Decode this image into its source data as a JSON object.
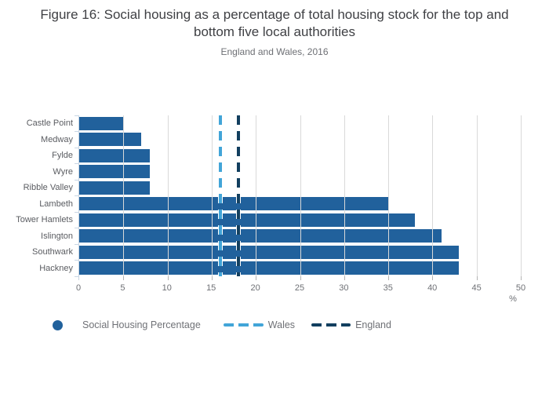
{
  "header": {
    "title": "Figure 16: Social housing as a percentage of total housing stock for the top and bottom five local authorities",
    "subtitle": "England and Wales, 2016"
  },
  "chart_data": {
    "type": "bar",
    "orientation": "horizontal",
    "title": "Figure 16: Social housing as a percentage of total housing stock for the top and bottom five local authorities",
    "subtitle": "England and Wales, 2016",
    "categories": [
      "Castle Point",
      "Medway",
      "Fylde",
      "Wyre",
      "Ribble Valley",
      "Lambeth",
      "Tower Hamlets",
      "Islington",
      "Southwark",
      "Hackney"
    ],
    "values": [
      5,
      7,
      8,
      8,
      8,
      35,
      38,
      41,
      43,
      43
    ],
    "series_name": "Social Housing Percentage",
    "bar_color": "#21619c",
    "xlim": [
      0,
      50
    ],
    "xticks": [
      0,
      5,
      10,
      15,
      20,
      25,
      30,
      35,
      40,
      45,
      50
    ],
    "unit_label": "%",
    "grid": true,
    "legend_position": "bottom",
    "reference_lines": [
      {
        "name": "Wales",
        "value": 16,
        "color": "#42a5d8",
        "style": "dashed"
      },
      {
        "name": "England",
        "value": 18,
        "color": "#123f5f",
        "style": "dashed"
      }
    ]
  },
  "legend": {
    "series_label": "Social Housing Percentage",
    "wales_label": "Wales",
    "england_label": "England"
  }
}
